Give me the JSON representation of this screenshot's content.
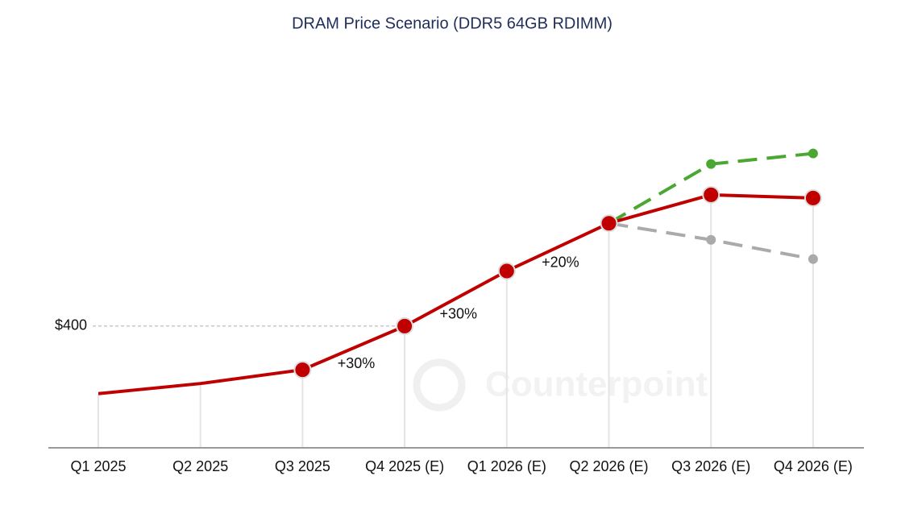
{
  "chart_data": {
    "type": "line",
    "title": "DRAM Price Scenario (DDR5 64GB RDIMM)",
    "watermark": "Counterpoint",
    "categories": [
      "Q1 2025",
      "Q2 2025",
      "Q3 2025",
      "Q4 2025 (E)",
      "Q1 2026 (E)",
      "Q2 2026 (E)",
      "Q3 2026 (E)",
      "Q4 2026 (E)"
    ],
    "series": [
      {
        "color": "#c00000",
        "dashed": false,
        "values": [
          253,
          275,
          305,
          400,
          520,
          624,
          686,
          679
        ],
        "markers": [
          false,
          false,
          true,
          true,
          true,
          true,
          true,
          true
        ]
      },
      {
        "color": "#4aa832",
        "dashed": true,
        "values": [
          null,
          null,
          null,
          null,
          null,
          624,
          753,
          776
        ],
        "markers": [
          false,
          false,
          false,
          false,
          false,
          false,
          true,
          true
        ]
      },
      {
        "color": "#aaaaaa",
        "dashed": true,
        "values": [
          null,
          null,
          null,
          null,
          null,
          624,
          588,
          546
        ],
        "markers": [
          false,
          false,
          false,
          false,
          false,
          false,
          true,
          true
        ]
      }
    ],
    "annotations": [
      {
        "text": "+30%",
        "segment": 2
      },
      {
        "text": "+30%",
        "segment": 3
      },
      {
        "text": "+20%",
        "segment": 4
      }
    ],
    "ylim": [
      135,
      1005
    ],
    "yticks": [
      {
        "value": 400,
        "label": "$400"
      }
    ]
  }
}
